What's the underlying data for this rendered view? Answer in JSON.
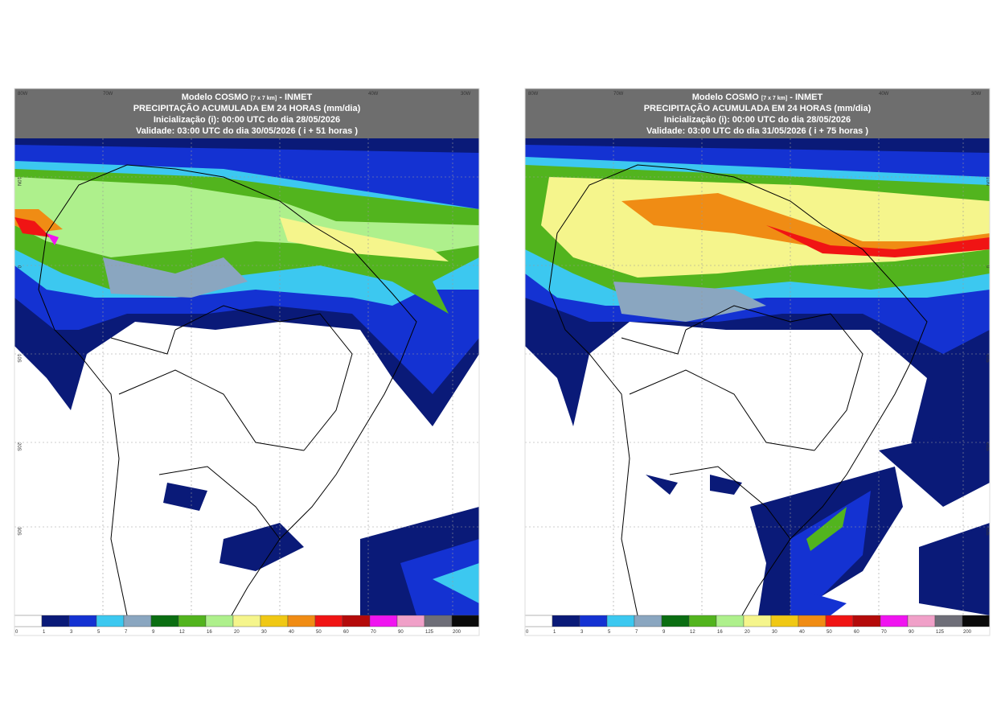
{
  "panels": [
    {
      "header": {
        "model": "Modelo COSMO",
        "resolution": "[7 x 7 km]",
        "agency": "- INMET",
        "product": "PRECIPITAÇÃO ACUMULADA EM 24 HORAS (mm/dia)",
        "init": "Inicialização (i): 00:00 UTC do dia 28/05/2026",
        "valid": "Validade: 03:00 UTC do dia 30/05/2026 ( i + 51 horas )"
      }
    },
    {
      "header": {
        "model": "Modelo COSMO",
        "resolution": "[7 x 7 km]",
        "agency": "- INMET",
        "product": "PRECIPITAÇÃO ACUMULADA EM 24 HORAS (mm/dia)",
        "init": "Inicialização (i): 00:00 UTC do dia 28/05/2026",
        "valid": "Validade: 03:00 UTC do dia 31/05/2026 ( i + 75 horas )"
      }
    }
  ],
  "lon_labels": [
    "80W",
    "70W",
    "40W",
    "30W"
  ],
  "lat_labels": [
    "10N",
    "0",
    "10S",
    "20S",
    "30S"
  ],
  "colorbar": {
    "labels": [
      0,
      1,
      3,
      5,
      7,
      9,
      12,
      16,
      20,
      30,
      40,
      50,
      60,
      70,
      90,
      125,
      200
    ],
    "colors": [
      "#ffffff",
      "#0a1a78",
      "#1432d2",
      "#3cc8f0",
      "#8aa6c0",
      "#0b6e12",
      "#52b41e",
      "#aef08c",
      "#f5f58c",
      "#f0c814",
      "#f08c14",
      "#f01414",
      "#b40a0a",
      "#f014f0",
      "#f0a0c8",
      "#6e6e78",
      "#0a0a0a"
    ]
  }
}
